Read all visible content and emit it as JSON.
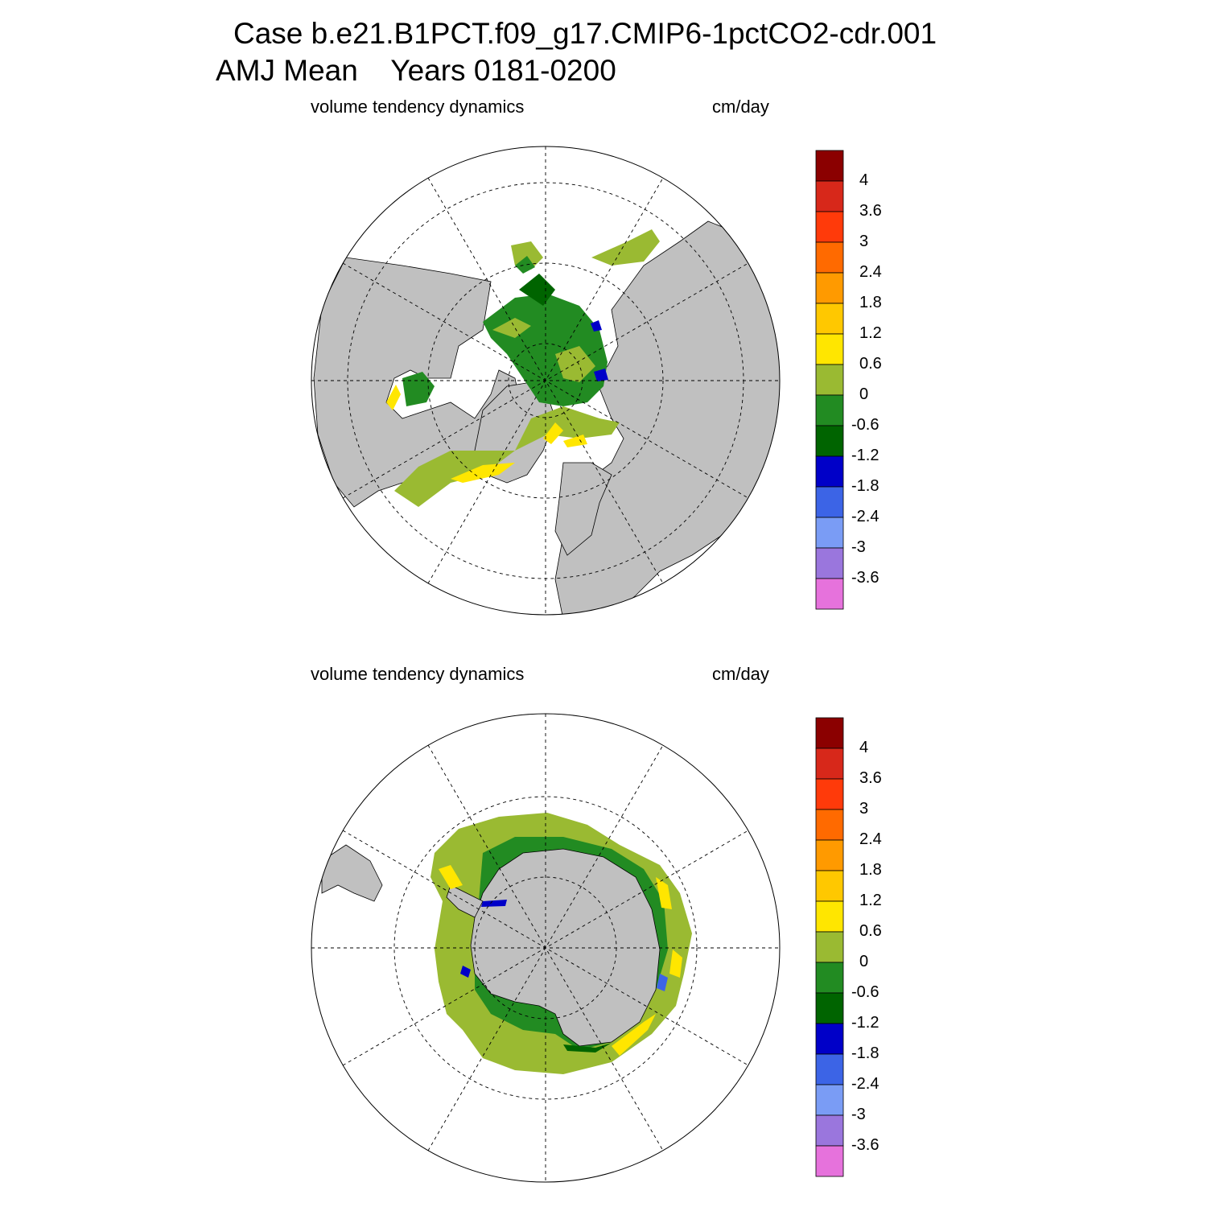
{
  "title": {
    "line1": "Case b.e21.B1PCT.f09_g17.CMIP6-1pctCO2-cdr.001",
    "line2": "AMJ Mean    Years 0181-0200"
  },
  "panels": [
    {
      "id": "north",
      "left_label": "volume tendency dynamics",
      "right_label": "cm/day"
    },
    {
      "id": "south",
      "left_label": "volume tendency dynamics",
      "right_label": "cm/day"
    }
  ],
  "colorbar": {
    "labels": [
      "4",
      "3.6",
      "3",
      "2.4",
      "1.8",
      "1.2",
      "0.6",
      "0",
      "-0.6",
      "-1.2",
      "-1.8",
      "-2.4",
      "-3",
      "-3.6"
    ],
    "colors": [
      "#8b0000",
      "#d7281a",
      "#ff3a0a",
      "#ff6a00",
      "#ff9a00",
      "#ffc800",
      "#ffe600",
      "#9aba32",
      "#228b22",
      "#006400",
      "#0000c8",
      "#3c64e6",
      "#7a9cf5",
      "#9a76dd",
      "#e672dc"
    ]
  },
  "map_colors": {
    "land": "#c0c0c0",
    "ocean": "#ffffff",
    "pos_small": "#9aba32",
    "neg_small": "#228b22",
    "neg_med": "#006400",
    "neg_large": "#0000c8",
    "pos_med": "#ffe600",
    "pos_large": "#ffc800"
  }
}
